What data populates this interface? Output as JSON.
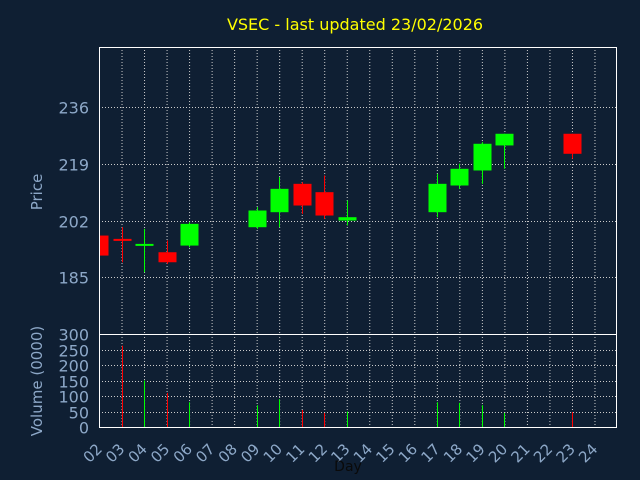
{
  "chart_data": {
    "type": "candlestick",
    "title": "VSEC - last updated 23/02/2026",
    "xlabel": "Day",
    "price_panel": {
      "ylabel": "Price",
      "yticks": [
        185,
        202,
        219,
        236
      ],
      "ylim": [
        168,
        254
      ]
    },
    "volume_panel": {
      "ylabel": "Volume (0000)",
      "yticks": [
        0,
        50,
        100,
        150,
        200,
        250,
        300
      ],
      "ylim": [
        0,
        300
      ]
    },
    "x_ticks": [
      "02",
      "03",
      "04",
      "05",
      "06",
      "07",
      "08",
      "09",
      "10",
      "11",
      "12",
      "13",
      "14",
      "15",
      "16",
      "17",
      "18",
      "19",
      "20",
      "21",
      "22",
      "23",
      "24"
    ],
    "candles": [
      {
        "day": "02",
        "open": 197.5,
        "close": 191.5,
        "high": 197.5,
        "low": 191.5,
        "volume": 0
      },
      {
        "day": "03",
        "open": 196.5,
        "close": 196.0,
        "high": 200.0,
        "low": 189.5,
        "volume": 262
      },
      {
        "day": "04",
        "open": 194.5,
        "close": 195.0,
        "high": 199.5,
        "low": 186.5,
        "volume": 150
      },
      {
        "day": "05",
        "open": 192.5,
        "close": 189.5,
        "high": 196.0,
        "low": 189.0,
        "volume": 110
      },
      {
        "day": "06",
        "open": 194.5,
        "close": 201.0,
        "high": 201.5,
        "low": 194.0,
        "volume": 80
      },
      {
        "day": "09",
        "open": 200.0,
        "close": 205.0,
        "high": 206.0,
        "low": 199.5,
        "volume": 70
      },
      {
        "day": "10",
        "open": 204.5,
        "close": 211.5,
        "high": 215.0,
        "low": 200.0,
        "volume": 90
      },
      {
        "day": "11",
        "open": 213.0,
        "close": 206.5,
        "high": 213.5,
        "low": 204.0,
        "volume": 55
      },
      {
        "day": "12",
        "open": 210.5,
        "close": 203.5,
        "high": 215.5,
        "low": 202.5,
        "volume": 45
      },
      {
        "day": "13",
        "open": 202.0,
        "close": 203.0,
        "high": 208.0,
        "low": 200.5,
        "volume": 50
      },
      {
        "day": "17",
        "open": 204.5,
        "close": 213.0,
        "high": 216.0,
        "low": 203.0,
        "volume": 80
      },
      {
        "day": "18",
        "open": 212.5,
        "close": 217.5,
        "high": 219.0,
        "low": 211.5,
        "volume": 78
      },
      {
        "day": "19",
        "open": 217.0,
        "close": 225.0,
        "high": 225.5,
        "low": 213.0,
        "volume": 70
      },
      {
        "day": "20",
        "open": 224.5,
        "close": 228.0,
        "high": 228.0,
        "low": 217.5,
        "volume": 45
      },
      {
        "day": "23",
        "open": 228.0,
        "close": 222.0,
        "high": 228.0,
        "low": 220.5,
        "volume": 48
      }
    ],
    "colors": {
      "background": "#0f1f33",
      "up": "#00ff00",
      "down": "#ff0000",
      "title": "#ffff00",
      "axis_text": "#8da8c8",
      "frame": "#ffffff",
      "grid": "#cccccc"
    }
  }
}
